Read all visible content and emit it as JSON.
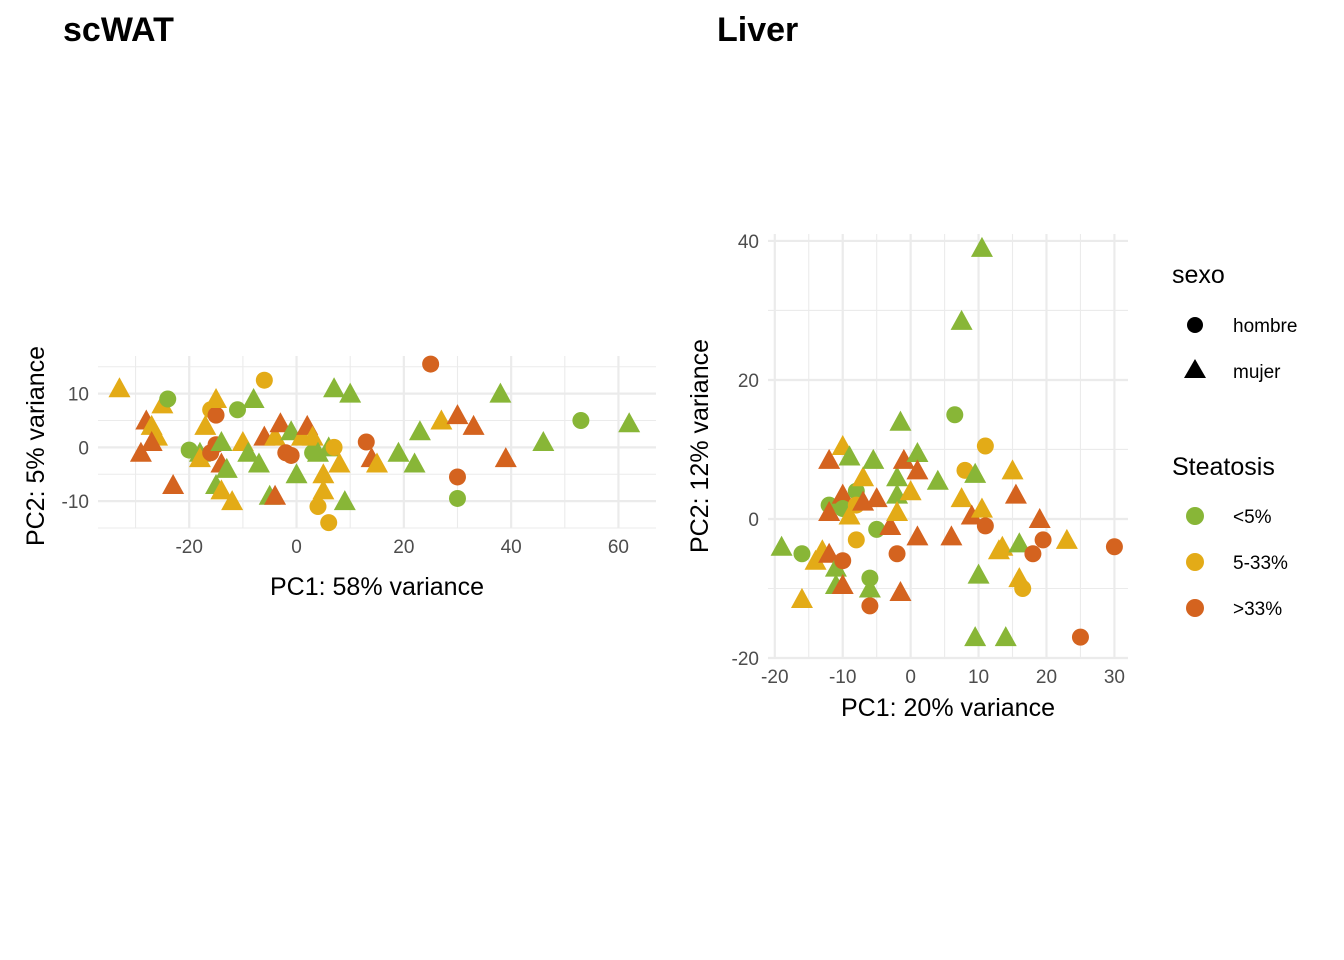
{
  "chart_data": [
    {
      "type": "scatter",
      "title": "scWAT",
      "xlabel": "PC1: 58% variance",
      "ylabel": "PC2: 5% variance",
      "xlim": [
        -37,
        67
      ],
      "ylim": [
        -15,
        17
      ],
      "x_ticks": [
        -20,
        0,
        20,
        40,
        60
      ],
      "x_tick_labels": [
        "-20",
        "0",
        "20",
        "40",
        "60"
      ],
      "y_ticks": [
        -10,
        0,
        10
      ],
      "y_tick_labels": [
        "-10",
        "0",
        "10"
      ],
      "grid": true,
      "points": [
        {
          "x": -33,
          "y": 11,
          "sexo": "mujer",
          "steatosis": "5-33%"
        },
        {
          "x": -28,
          "y": 5,
          "sexo": "mujer",
          "steatosis": ">33%"
        },
        {
          "x": -27,
          "y": 4,
          "sexo": "mujer",
          "steatosis": "5-33%"
        },
        {
          "x": -25,
          "y": 8,
          "sexo": "mujer",
          "steatosis": "5-33%"
        },
        {
          "x": -24,
          "y": 9,
          "sexo": "hombre",
          "steatosis": "<5%"
        },
        {
          "x": -26,
          "y": 2,
          "sexo": "mujer",
          "steatosis": "5-33%"
        },
        {
          "x": -27,
          "y": 1,
          "sexo": "mujer",
          "steatosis": ">33%"
        },
        {
          "x": -29,
          "y": -1,
          "sexo": "mujer",
          "steatosis": ">33%"
        },
        {
          "x": -23,
          "y": -7,
          "sexo": "mujer",
          "steatosis": ">33%"
        },
        {
          "x": -20,
          "y": -0.5,
          "sexo": "hombre",
          "steatosis": "<5%"
        },
        {
          "x": -18,
          "y": -1,
          "sexo": "mujer",
          "steatosis": "<5%"
        },
        {
          "x": -18,
          "y": -2,
          "sexo": "mujer",
          "steatosis": "5-33%"
        },
        {
          "x": -17,
          "y": 4,
          "sexo": "mujer",
          "steatosis": "5-33%"
        },
        {
          "x": -16,
          "y": 7,
          "sexo": "hombre",
          "steatosis": "5-33%"
        },
        {
          "x": -15,
          "y": 6,
          "sexo": "hombre",
          "steatosis": ">33%"
        },
        {
          "x": -15,
          "y": 9,
          "sexo": "mujer",
          "steatosis": "5-33%"
        },
        {
          "x": -16,
          "y": -1,
          "sexo": "hombre",
          "steatosis": ">33%"
        },
        {
          "x": -15,
          "y": 0.5,
          "sexo": "hombre",
          "steatosis": ">33%"
        },
        {
          "x": -14,
          "y": 1,
          "sexo": "mujer",
          "steatosis": "<5%"
        },
        {
          "x": -14,
          "y": -3,
          "sexo": "mujer",
          "steatosis": ">33%"
        },
        {
          "x": -13,
          "y": -4,
          "sexo": "mujer",
          "steatosis": "<5%"
        },
        {
          "x": -15,
          "y": -7,
          "sexo": "mujer",
          "steatosis": "<5%"
        },
        {
          "x": -14,
          "y": -8,
          "sexo": "mujer",
          "steatosis": "5-33%"
        },
        {
          "x": -12,
          "y": -10,
          "sexo": "mujer",
          "steatosis": "5-33%"
        },
        {
          "x": -11,
          "y": 7,
          "sexo": "hombre",
          "steatosis": "<5%"
        },
        {
          "x": -10,
          "y": 1,
          "sexo": "mujer",
          "steatosis": "5-33%"
        },
        {
          "x": -9,
          "y": -1,
          "sexo": "mujer",
          "steatosis": "<5%"
        },
        {
          "x": -8,
          "y": 9,
          "sexo": "mujer",
          "steatosis": "<5%"
        },
        {
          "x": -7,
          "y": -3,
          "sexo": "mujer",
          "steatosis": "<5%"
        },
        {
          "x": -6,
          "y": 12.5,
          "sexo": "hombre",
          "steatosis": "5-33%"
        },
        {
          "x": -6,
          "y": 2,
          "sexo": "mujer",
          "steatosis": ">33%"
        },
        {
          "x": -5,
          "y": -9,
          "sexo": "mujer",
          "steatosis": "<5%"
        },
        {
          "x": -4,
          "y": -9,
          "sexo": "mujer",
          "steatosis": ">33%"
        },
        {
          "x": -4,
          "y": 2,
          "sexo": "mujer",
          "steatosis": "5-33%"
        },
        {
          "x": -3,
          "y": 4.5,
          "sexo": "mujer",
          "steatosis": ">33%"
        },
        {
          "x": -2,
          "y": -1,
          "sexo": "hombre",
          "steatosis": ">33%"
        },
        {
          "x": -1,
          "y": 3,
          "sexo": "mujer",
          "steatosis": "<5%"
        },
        {
          "x": -1,
          "y": -1.5,
          "sexo": "hombre",
          "steatosis": ">33%"
        },
        {
          "x": 0,
          "y": -5,
          "sexo": "mujer",
          "steatosis": "<5%"
        },
        {
          "x": 1,
          "y": 2,
          "sexo": "mujer",
          "steatosis": "5-33%"
        },
        {
          "x": 2,
          "y": 4,
          "sexo": "mujer",
          "steatosis": ">33%"
        },
        {
          "x": 3,
          "y": -1,
          "sexo": "hombre",
          "steatosis": "<5%"
        },
        {
          "x": 3,
          "y": 2,
          "sexo": "mujer",
          "steatosis": "5-33%"
        },
        {
          "x": 4,
          "y": -1,
          "sexo": "mujer",
          "steatosis": "<5%"
        },
        {
          "x": 4,
          "y": -11,
          "sexo": "hombre",
          "steatosis": "5-33%"
        },
        {
          "x": 5,
          "y": -5,
          "sexo": "mujer",
          "steatosis": "5-33%"
        },
        {
          "x": 5,
          "y": -8,
          "sexo": "mujer",
          "steatosis": "5-33%"
        },
        {
          "x": 6,
          "y": 0,
          "sexo": "mujer",
          "steatosis": "<5%"
        },
        {
          "x": 6,
          "y": -14,
          "sexo": "hombre",
          "steatosis": "5-33%"
        },
        {
          "x": 7,
          "y": 11,
          "sexo": "mujer",
          "steatosis": "<5%"
        },
        {
          "x": 7,
          "y": 0,
          "sexo": "hombre",
          "steatosis": "5-33%"
        },
        {
          "x": 8,
          "y": -3,
          "sexo": "mujer",
          "steatosis": "5-33%"
        },
        {
          "x": 9,
          "y": -10,
          "sexo": "mujer",
          "steatosis": "<5%"
        },
        {
          "x": 10,
          "y": 10,
          "sexo": "mujer",
          "steatosis": "<5%"
        },
        {
          "x": 13,
          "y": 1,
          "sexo": "hombre",
          "steatosis": ">33%"
        },
        {
          "x": 14,
          "y": -2,
          "sexo": "mujer",
          "steatosis": ">33%"
        },
        {
          "x": 15,
          "y": -3,
          "sexo": "mujer",
          "steatosis": "5-33%"
        },
        {
          "x": 19,
          "y": -1,
          "sexo": "mujer",
          "steatosis": "<5%"
        },
        {
          "x": 22,
          "y": -3,
          "sexo": "mujer",
          "steatosis": "<5%"
        },
        {
          "x": 23,
          "y": 3,
          "sexo": "mujer",
          "steatosis": "<5%"
        },
        {
          "x": 25,
          "y": 15.5,
          "sexo": "hombre",
          "steatosis": ">33%"
        },
        {
          "x": 27,
          "y": 5,
          "sexo": "mujer",
          "steatosis": "5-33%"
        },
        {
          "x": 30,
          "y": 6,
          "sexo": "mujer",
          "steatosis": ">33%"
        },
        {
          "x": 30,
          "y": -5.5,
          "sexo": "hombre",
          "steatosis": ">33%"
        },
        {
          "x": 30,
          "y": -9.5,
          "sexo": "hombre",
          "steatosis": "<5%"
        },
        {
          "x": 33,
          "y": 4,
          "sexo": "mujer",
          "steatosis": ">33%"
        },
        {
          "x": 38,
          "y": 10,
          "sexo": "mujer",
          "steatosis": "<5%"
        },
        {
          "x": 39,
          "y": -2,
          "sexo": "mujer",
          "steatosis": ">33%"
        },
        {
          "x": 46,
          "y": 1,
          "sexo": "mujer",
          "steatosis": "<5%"
        },
        {
          "x": 53,
          "y": 5,
          "sexo": "hombre",
          "steatosis": "<5%"
        },
        {
          "x": 62,
          "y": 4.5,
          "sexo": "mujer",
          "steatosis": "<5%"
        }
      ]
    },
    {
      "type": "scatter",
      "title": "Liver",
      "xlabel": "PC1: 20% variance",
      "ylabel": "PC2: 12% variance",
      "xlim": [
        -21,
        32
      ],
      "ylim": [
        -20,
        41
      ],
      "x_ticks": [
        -20,
        -10,
        0,
        10,
        20,
        30
      ],
      "x_tick_labels": [
        "-20",
        "-10",
        "0",
        "10",
        "20",
        "30"
      ],
      "y_ticks": [
        -20,
        0,
        20,
        40
      ],
      "y_tick_labels": [
        "-20",
        "0",
        "20",
        "40"
      ],
      "grid": true,
      "points": [
        {
          "x": -19,
          "y": -4,
          "sexo": "mujer",
          "steatosis": "<5%"
        },
        {
          "x": -16,
          "y": -5,
          "sexo": "hombre",
          "steatosis": "<5%"
        },
        {
          "x": -16,
          "y": -11.5,
          "sexo": "mujer",
          "steatosis": "5-33%"
        },
        {
          "x": -14,
          "y": -6,
          "sexo": "mujer",
          "steatosis": "5-33%"
        },
        {
          "x": -13,
          "y": -4.5,
          "sexo": "mujer",
          "steatosis": "5-33%"
        },
        {
          "x": -12,
          "y": -5,
          "sexo": "mujer",
          "steatosis": ">33%"
        },
        {
          "x": -12,
          "y": 8.5,
          "sexo": "mujer",
          "steatosis": ">33%"
        },
        {
          "x": -12,
          "y": 2,
          "sexo": "hombre",
          "steatosis": "<5%"
        },
        {
          "x": -12,
          "y": 1,
          "sexo": "mujer",
          "steatosis": ">33%"
        },
        {
          "x": -11,
          "y": -9.5,
          "sexo": "mujer",
          "steatosis": "<5%"
        },
        {
          "x": -11,
          "y": -7,
          "sexo": "mujer",
          "steatosis": "<5%"
        },
        {
          "x": -10,
          "y": 10.5,
          "sexo": "mujer",
          "steatosis": "5-33%"
        },
        {
          "x": -10,
          "y": 3.5,
          "sexo": "mujer",
          "steatosis": ">33%"
        },
        {
          "x": -10,
          "y": -6,
          "sexo": "hombre",
          "steatosis": ">33%"
        },
        {
          "x": -10,
          "y": -9.5,
          "sexo": "mujer",
          "steatosis": ">33%"
        },
        {
          "x": -10,
          "y": 1.5,
          "sexo": "hombre",
          "steatosis": "<5%"
        },
        {
          "x": -9,
          "y": 9,
          "sexo": "mujer",
          "steatosis": "<5%"
        },
        {
          "x": -9,
          "y": 0.5,
          "sexo": "mujer",
          "steatosis": "5-33%"
        },
        {
          "x": -8,
          "y": 4,
          "sexo": "hombre",
          "steatosis": "<5%"
        },
        {
          "x": -8,
          "y": -3,
          "sexo": "hombre",
          "steatosis": "5-33%"
        },
        {
          "x": -8,
          "y": 2,
          "sexo": "hombre",
          "steatosis": "5-33%"
        },
        {
          "x": -7,
          "y": 6,
          "sexo": "mujer",
          "steatosis": "5-33%"
        },
        {
          "x": -7,
          "y": 2.5,
          "sexo": "mujer",
          "steatosis": ">33%"
        },
        {
          "x": -6,
          "y": -8.5,
          "sexo": "hombre",
          "steatosis": "<5%"
        },
        {
          "x": -6,
          "y": -12.5,
          "sexo": "hombre",
          "steatosis": ">33%"
        },
        {
          "x": -6,
          "y": -10,
          "sexo": "mujer",
          "steatosis": "<5%"
        },
        {
          "x": -5.5,
          "y": 8.5,
          "sexo": "mujer",
          "steatosis": "<5%"
        },
        {
          "x": -5,
          "y": -1.5,
          "sexo": "hombre",
          "steatosis": "<5%"
        },
        {
          "x": -5,
          "y": 3,
          "sexo": "mujer",
          "steatosis": ">33%"
        },
        {
          "x": -3,
          "y": -1,
          "sexo": "mujer",
          "steatosis": ">33%"
        },
        {
          "x": -2,
          "y": 6,
          "sexo": "mujer",
          "steatosis": "<5%"
        },
        {
          "x": -2,
          "y": 3.5,
          "sexo": "mujer",
          "steatosis": "<5%"
        },
        {
          "x": -2,
          "y": 1,
          "sexo": "mujer",
          "steatosis": "5-33%"
        },
        {
          "x": -2,
          "y": -5,
          "sexo": "hombre",
          "steatosis": ">33%"
        },
        {
          "x": -1.5,
          "y": 14,
          "sexo": "mujer",
          "steatosis": "<5%"
        },
        {
          "x": -1.5,
          "y": -10.5,
          "sexo": "mujer",
          "steatosis": ">33%"
        },
        {
          "x": -1,
          "y": 8.5,
          "sexo": "mujer",
          "steatosis": ">33%"
        },
        {
          "x": 0,
          "y": 4,
          "sexo": "mujer",
          "steatosis": "5-33%"
        },
        {
          "x": 1,
          "y": 9.5,
          "sexo": "mujer",
          "steatosis": "<5%"
        },
        {
          "x": 1,
          "y": 7,
          "sexo": "mujer",
          "steatosis": ">33%"
        },
        {
          "x": 1,
          "y": -2.5,
          "sexo": "mujer",
          "steatosis": ">33%"
        },
        {
          "x": 4,
          "y": 5.5,
          "sexo": "mujer",
          "steatosis": "<5%"
        },
        {
          "x": 6,
          "y": -2.5,
          "sexo": "mujer",
          "steatosis": ">33%"
        },
        {
          "x": 6.5,
          "y": 15,
          "sexo": "hombre",
          "steatosis": "<5%"
        },
        {
          "x": 7.5,
          "y": 28.5,
          "sexo": "mujer",
          "steatosis": "<5%"
        },
        {
          "x": 7.5,
          "y": 3,
          "sexo": "mujer",
          "steatosis": "5-33%"
        },
        {
          "x": 8,
          "y": 7,
          "sexo": "hombre",
          "steatosis": "5-33%"
        },
        {
          "x": 9,
          "y": 0.5,
          "sexo": "mujer",
          "steatosis": ">33%"
        },
        {
          "x": 9.5,
          "y": 6.5,
          "sexo": "mujer",
          "steatosis": "<5%"
        },
        {
          "x": 9.5,
          "y": -17,
          "sexo": "mujer",
          "steatosis": "<5%"
        },
        {
          "x": 10,
          "y": -8,
          "sexo": "mujer",
          "steatosis": "<5%"
        },
        {
          "x": 10.5,
          "y": 39,
          "sexo": "mujer",
          "steatosis": "<5%"
        },
        {
          "x": 10.5,
          "y": 1.5,
          "sexo": "mujer",
          "steatosis": "5-33%"
        },
        {
          "x": 11,
          "y": 10.5,
          "sexo": "hombre",
          "steatosis": "5-33%"
        },
        {
          "x": 11,
          "y": -1,
          "sexo": "hombre",
          "steatosis": ">33%"
        },
        {
          "x": 13,
          "y": -4.5,
          "sexo": "mujer",
          "steatosis": "5-33%"
        },
        {
          "x": 13.5,
          "y": -4,
          "sexo": "mujer",
          "steatosis": "5-33%"
        },
        {
          "x": 14,
          "y": -17,
          "sexo": "mujer",
          "steatosis": "<5%"
        },
        {
          "x": 15,
          "y": 7,
          "sexo": "mujer",
          "steatosis": "5-33%"
        },
        {
          "x": 15.5,
          "y": 3.5,
          "sexo": "mujer",
          "steatosis": ">33%"
        },
        {
          "x": 16,
          "y": -3.5,
          "sexo": "mujer",
          "steatosis": "<5%"
        },
        {
          "x": 16,
          "y": -8.5,
          "sexo": "mujer",
          "steatosis": "5-33%"
        },
        {
          "x": 16.5,
          "y": -10,
          "sexo": "hombre",
          "steatosis": "5-33%"
        },
        {
          "x": 18,
          "y": -5,
          "sexo": "hombre",
          "steatosis": ">33%"
        },
        {
          "x": 19,
          "y": 0,
          "sexo": "mujer",
          "steatosis": ">33%"
        },
        {
          "x": 19.5,
          "y": -3,
          "sexo": "hombre",
          "steatosis": ">33%"
        },
        {
          "x": 23,
          "y": -3,
          "sexo": "mujer",
          "steatosis": "5-33%"
        },
        {
          "x": 25,
          "y": -17,
          "sexo": "hombre",
          "steatosis": ">33%"
        },
        {
          "x": 30,
          "y": -4,
          "sexo": "hombre",
          "steatosis": ">33%"
        }
      ]
    }
  ],
  "legend": {
    "placement": "right",
    "sexo": {
      "title": "sexo",
      "items": [
        {
          "label": "hombre",
          "shape": "circle"
        },
        {
          "label": "mujer",
          "shape": "triangle"
        }
      ]
    },
    "steatosis": {
      "title": "Steatosis",
      "items": [
        {
          "label": "<5%",
          "color": "#88b637"
        },
        {
          "label": "5-33%",
          "color": "#e3ab17"
        },
        {
          "label": ">33%",
          "color": "#d4631f"
        }
      ]
    }
  }
}
